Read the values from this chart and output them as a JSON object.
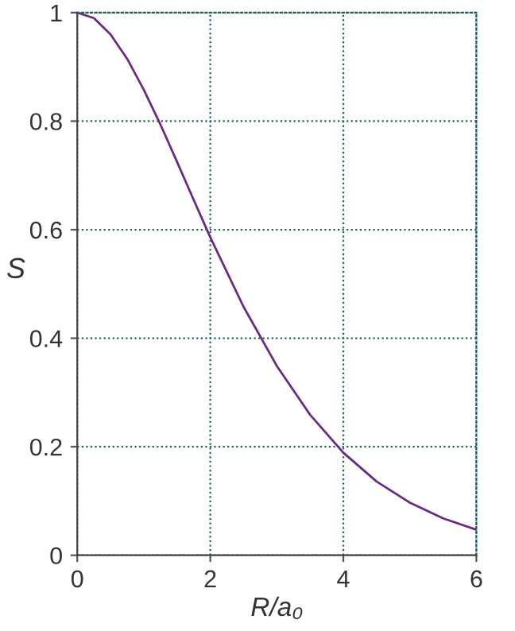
{
  "chart_data": {
    "type": "line",
    "xlabel": "R/a₀",
    "ylabel": "S",
    "x": [
      0,
      0.25,
      0.5,
      0.75,
      1,
      1.25,
      1.5,
      1.75,
      2,
      2.5,
      3,
      3.5,
      4,
      4.5,
      5,
      5.5,
      6
    ],
    "series": [
      {
        "color": "#6a2a86",
        "values": [
          1.0,
          0.99,
          0.96,
          0.915,
          0.858,
          0.794,
          0.725,
          0.655,
          0.586,
          0.458,
          0.349,
          0.259,
          0.189,
          0.136,
          0.097,
          0.068,
          0.047
        ]
      }
    ],
    "xlim": [
      0,
      6
    ],
    "ylim": [
      0,
      1
    ],
    "xticks": [
      0,
      2,
      4,
      6
    ],
    "yticks": [
      0,
      0.2,
      0.4,
      0.6,
      0.8,
      1
    ],
    "grid": true,
    "marker": "none",
    "line_style": "solid"
  }
}
